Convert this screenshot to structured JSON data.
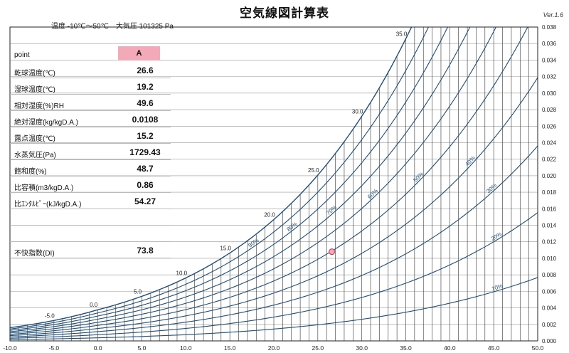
{
  "header": {
    "title": "空気線図計算表",
    "version": "Ver.1.6",
    "conditions": "温度 -10℃～50℃　大気圧 101325 Pa"
  },
  "table": {
    "point_label": "point",
    "point_name": "A",
    "rows": [
      {
        "label": "乾球温度(℃)",
        "value": "26.6"
      },
      {
        "label": "湿球温度(℃)",
        "value": "19.2"
      },
      {
        "label": "相対湿度(%)RH",
        "value": "49.6"
      },
      {
        "label": "絶対湿度(kg/kgD.A.)",
        "value": "0.0108"
      },
      {
        "label": "露点温度(℃)",
        "value": "15.2"
      },
      {
        "label": "水蒸気圧(Pa)",
        "value": "1729.43"
      },
      {
        "label": "飽和度(%)",
        "value": "48.7"
      },
      {
        "label": "比容積(m3/kgD.A.)",
        "value": "0.86"
      },
      {
        "label": "比ｴﾝﾀﾙﾋﾟｰ(kJ/kgD.A.)",
        "value": "54.27"
      },
      {
        "label": "",
        "value": ""
      },
      {
        "label": "",
        "value": ""
      },
      {
        "label": "不快指数(DI)",
        "value": "73.8"
      }
    ]
  },
  "colors": {
    "curve": "#1f4e79",
    "grid": "#333333",
    "point_fill": "#f3a9b8",
    "point_stroke": "#c0334d",
    "header_fill": "#f3a9b8"
  },
  "chart_data": {
    "type": "line",
    "title": "",
    "xlabel": "",
    "ylabel": "",
    "xlim": [
      -10,
      50
    ],
    "ylim": [
      0,
      0.038
    ],
    "x_ticks": [
      "-10.0",
      "-5.0",
      "0.0",
      "5.0",
      "10.0",
      "15.0",
      "20.0",
      "25.0",
      "30.0",
      "35.0",
      "40.0",
      "45.0",
      "50.0"
    ],
    "y_ticks": [
      "0.000",
      "0.002",
      "0.004",
      "0.006",
      "0.008",
      "0.010",
      "0.012",
      "0.014",
      "0.016",
      "0.018",
      "0.020",
      "0.022",
      "0.024",
      "0.026",
      "0.028",
      "0.030",
      "0.032",
      "0.034",
      "0.036",
      "0.038"
    ],
    "y_axis_side": "right",
    "grid": true,
    "vertical_grid_step": 1,
    "rh_curves": [
      10,
      20,
      30,
      40,
      50,
      60,
      70,
      80,
      90,
      100
    ],
    "rh_labels": [
      "10%",
      "20%",
      "30%",
      "40%",
      "50%",
      "60%",
      "70%",
      "80%",
      "90%"
    ],
    "saturation_temp_labels": [
      "-5.0",
      "0.0",
      "5.0",
      "10.0",
      "15.0",
      "20.0",
      "25.0",
      "30.0",
      "35.0"
    ],
    "point": {
      "name": "A",
      "dry_bulb": 26.6,
      "humidity_ratio": 0.0108
    }
  }
}
